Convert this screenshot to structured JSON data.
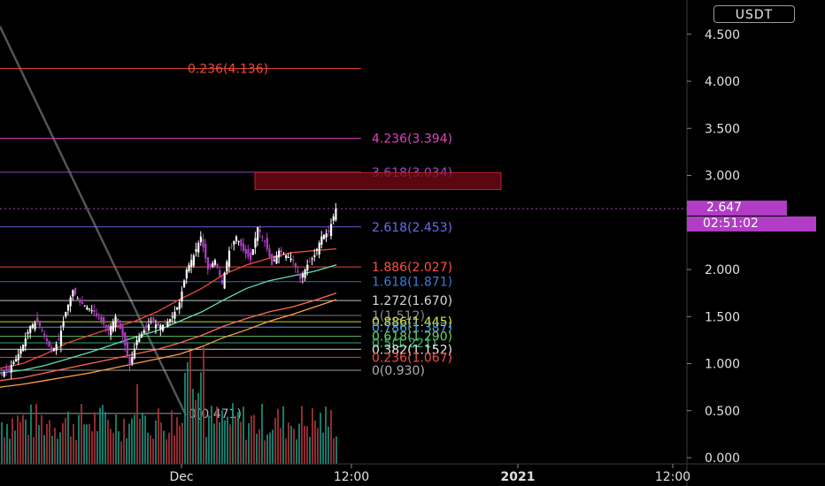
{
  "header": {
    "currency": "USDT"
  },
  "chart_data": {
    "type": "candlestick",
    "title": "",
    "ylim": [
      0,
      4.75
    ],
    "y_ticks": [
      "0.000",
      "0.500",
      "1.000",
      "1.500",
      "2.000",
      "2.500",
      "3.000",
      "3.500",
      "4.000",
      "4.500"
    ],
    "x_ticks": [
      "Dec",
      "12:00",
      "2021",
      "12:00"
    ],
    "last_price": "2.647",
    "countdown": "02:51:02",
    "fib_levels": [
      {
        "label": "0.236(4.136)",
        "value": 4.136,
        "color": "#f0483e"
      },
      {
        "label": "4.236(3.394)",
        "value": 3.394,
        "color": "#e040c0"
      },
      {
        "label": "3.618(3.034)",
        "value": 3.034,
        "color": "#9c4dd8"
      },
      {
        "label": "2.618(2.453)",
        "value": 2.453,
        "color": "#6a6af0"
      },
      {
        "label": "1.886(2.027)",
        "value": 2.027,
        "color": "#ff5040"
      },
      {
        "label": "1.618(1.871)",
        "value": 1.871,
        "color": "#3a7cd8"
      },
      {
        "label": "1.272(1.670)",
        "value": 1.67,
        "color": "#d8d8d8"
      },
      {
        "label": "1(1.512)",
        "value": 1.512,
        "color": "#888888"
      },
      {
        "label": "0.886(1.445)",
        "value": 1.445,
        "color": "#e6e63a"
      },
      {
        "label": "0.786(1.387)",
        "value": 1.387,
        "color": "#4aa8e8"
      },
      {
        "label": "0.618(1.290)",
        "value": 1.29,
        "color": "#6ad06a"
      },
      {
        "label": "0.5(1.221)",
        "value": 1.221,
        "color": "#3ab870"
      },
      {
        "label": "0.382(1.152)",
        "value": 1.152,
        "color": "#e8e8e8"
      },
      {
        "label": "0.236(1.067)",
        "value": 1.067,
        "color": "#f05040"
      },
      {
        "label": "0(0.930)",
        "value": 0.93,
        "color": "#b0b0b0"
      },
      {
        "label": "0(0.471)",
        "value": 0.471,
        "color": "#b0b0b0"
      }
    ],
    "resistance_zone": [
      2.85,
      3.03
    ],
    "price_path": [
      0.88,
      0.95,
      1.05,
      1.2,
      1.4,
      1.45,
      1.3,
      1.12,
      1.25,
      1.55,
      1.78,
      1.65,
      1.6,
      1.55,
      1.45,
      1.35,
      1.5,
      1.3,
      0.98,
      1.25,
      1.35,
      1.45,
      1.4,
      1.42,
      1.5,
      1.65,
      2.0,
      2.15,
      2.35,
      2.0,
      2.1,
      1.85,
      2.2,
      2.35,
      2.2,
      2.1,
      2.45,
      2.3,
      2.05,
      2.2,
      2.15,
      2.1,
      1.9,
      2.05,
      2.15,
      2.35,
      2.4,
      2.647
    ],
    "ma_series": [
      {
        "color": "#f0483e",
        "values": [
          0.95,
          1.0,
          1.1,
          1.22,
          1.3,
          1.38,
          1.45,
          1.55,
          1.68,
          1.8,
          1.95,
          2.05,
          2.12,
          2.18,
          2.2,
          2.22
        ]
      },
      {
        "color": "#5fe0b0",
        "values": [
          0.9,
          0.93,
          0.98,
          1.05,
          1.12,
          1.2,
          1.28,
          1.35,
          1.45,
          1.55,
          1.68,
          1.8,
          1.88,
          1.93,
          1.98,
          2.05
        ]
      },
      {
        "color": "#ff6a5a",
        "values": [
          0.82,
          0.85,
          0.9,
          0.95,
          1.0,
          1.05,
          1.1,
          1.15,
          1.22,
          1.3,
          1.4,
          1.48,
          1.55,
          1.6,
          1.67,
          1.75
        ]
      },
      {
        "color": "#ffa040",
        "values": [
          0.75,
          0.78,
          0.82,
          0.86,
          0.9,
          0.95,
          1.0,
          1.05,
          1.1,
          1.18,
          1.28,
          1.36,
          1.45,
          1.52,
          1.6,
          1.68
        ]
      }
    ]
  }
}
